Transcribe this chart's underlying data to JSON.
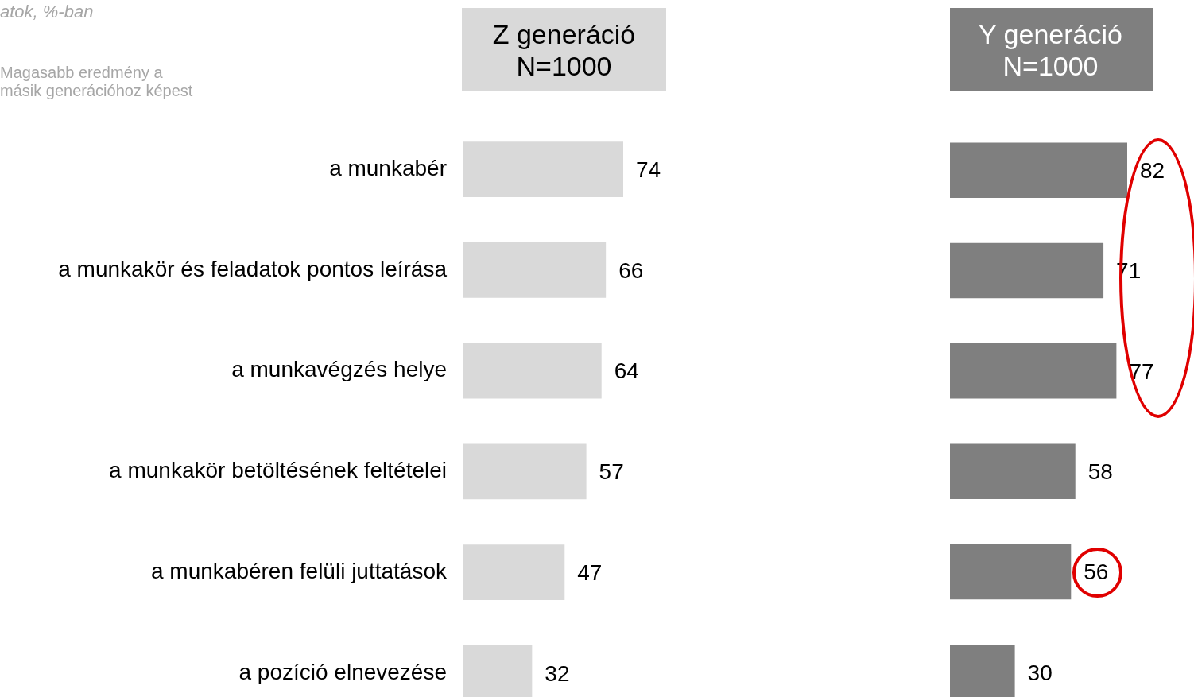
{
  "chart_data": [
    {
      "type": "bar",
      "orientation": "horizontal",
      "categories": [
        "a munkabér",
        "a munkakör és feladatok pontos leírása",
        "a munkavégzés helye",
        "a munkakör betöltésének feltételei",
        "a munkabéren felüli juttatások",
        "a pozíció elnevezése"
      ],
      "tick_labels": "y",
      "data_labels": true,
      "annotations": [
        "atok, %-ban",
        "Magasabb eredmény a\nmásik generációhoz képest"
      ],
      "series": [
        {
          "name": "Z generáció\nN=1000",
          "color": "#d9d9d9",
          "values": [
            74,
            66,
            64,
            57,
            47,
            32
          ]
        }
      ]
    },
    {
      "type": "bar",
      "orientation": "horizontal",
      "categories": [
        null,
        null,
        null,
        null,
        null,
        null
      ],
      "tick_labels": false,
      "data_labels": true,
      "series": [
        {
          "name": "Y generáció\nN=1000",
          "color": "#7f7f7f",
          "values": [
            82,
            71,
            77,
            58,
            56,
            30
          ]
        }
      ]
    }
  ]
}
